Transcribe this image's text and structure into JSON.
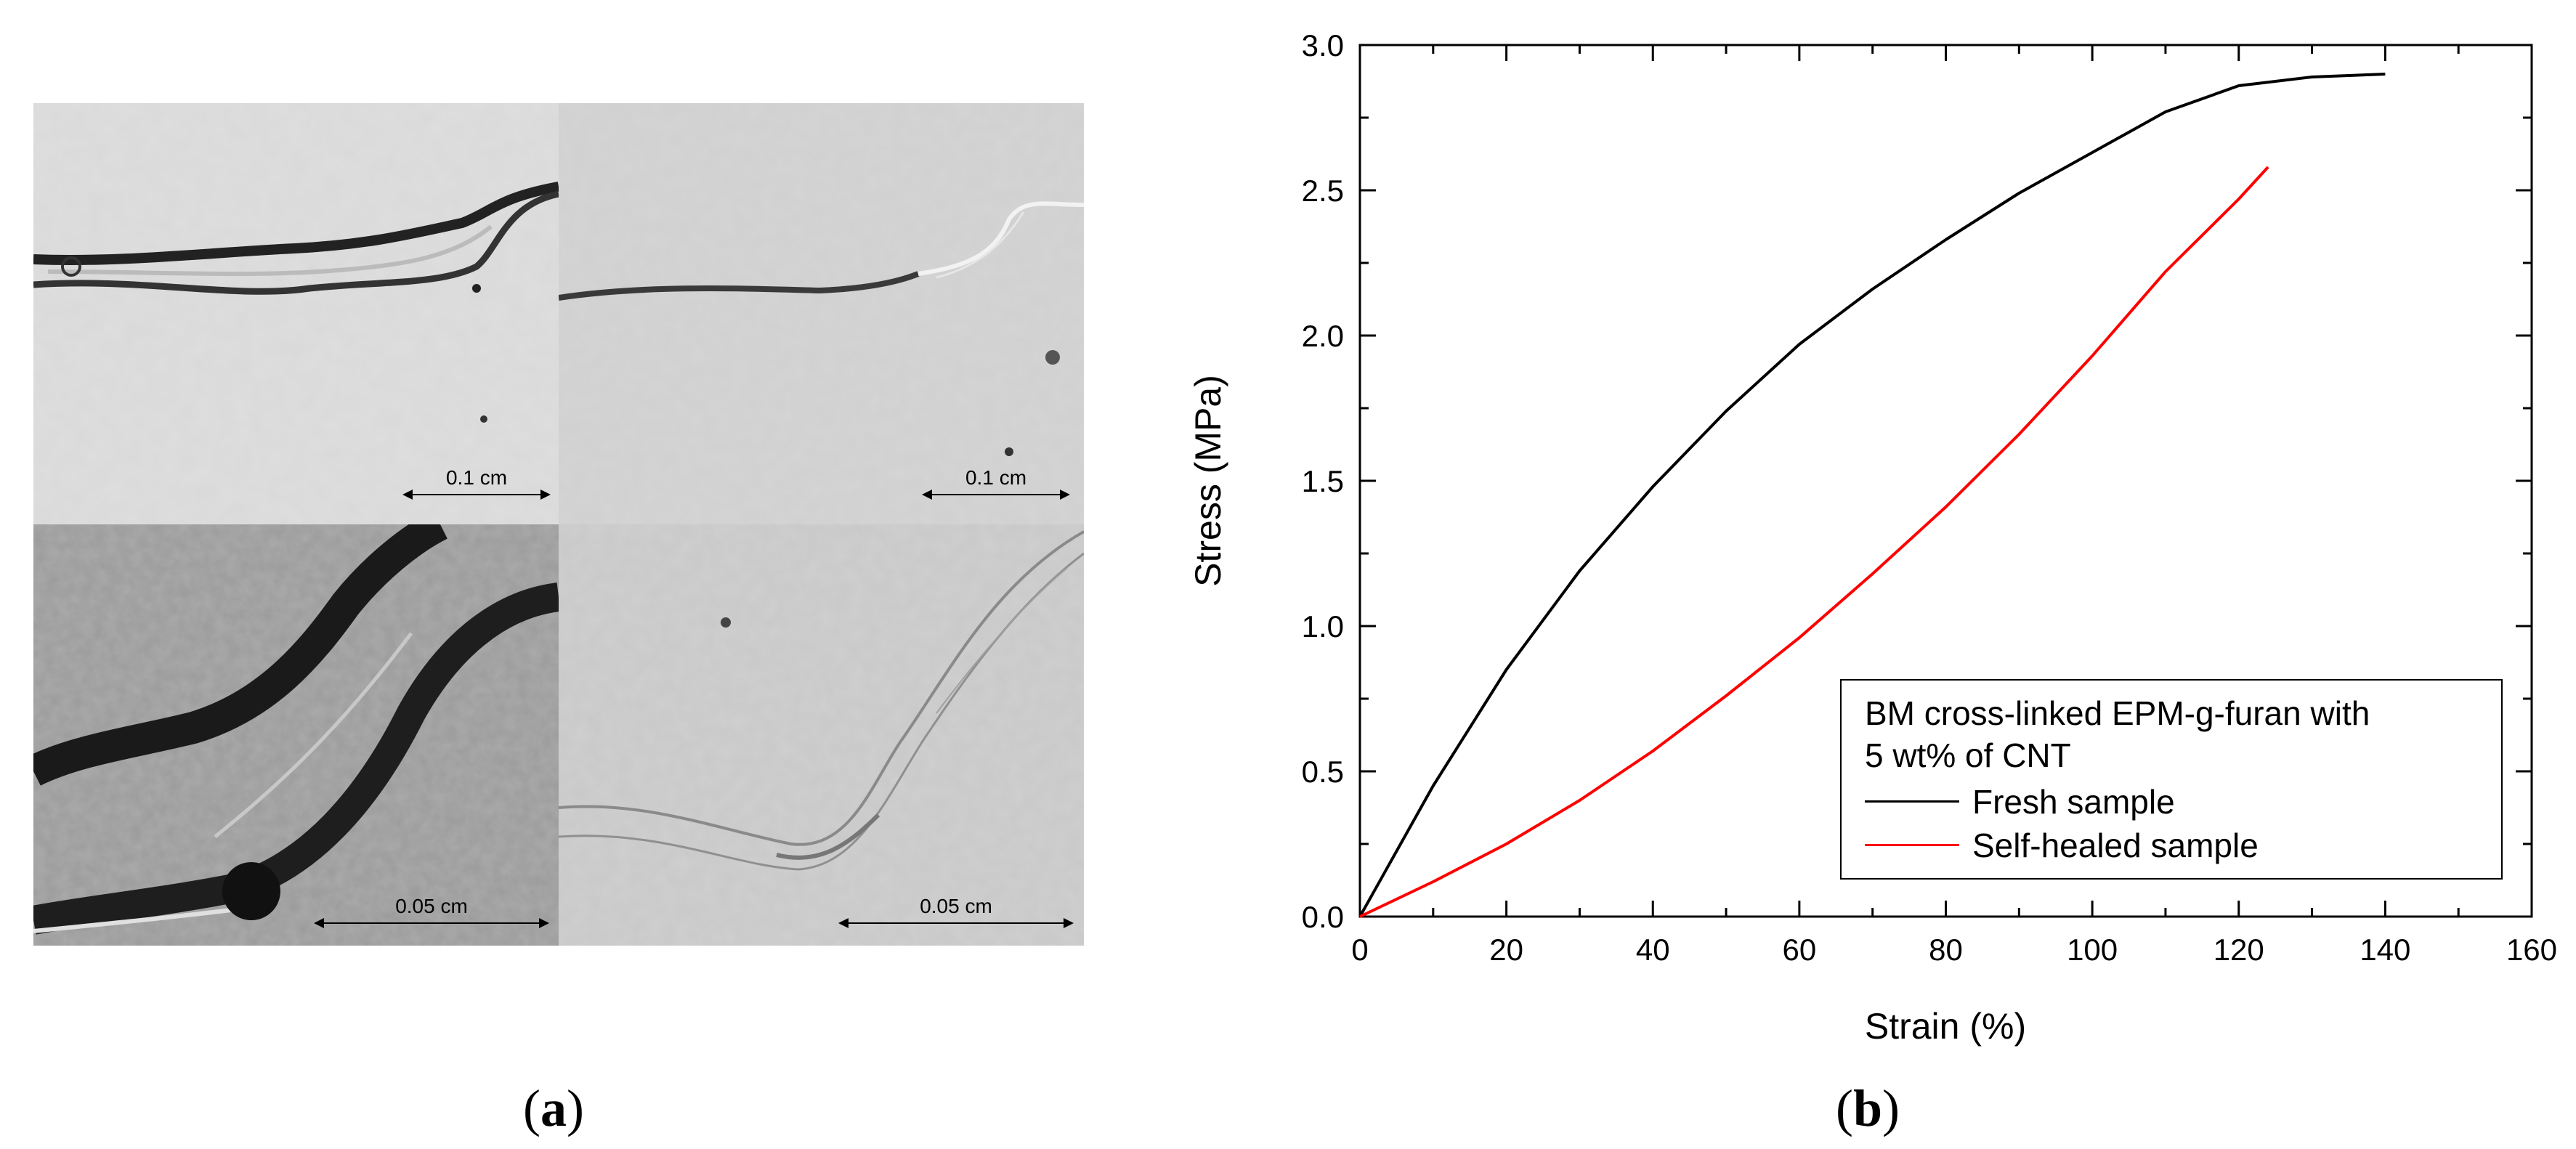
{
  "panels": {
    "a_label": "a",
    "b_label": "b"
  },
  "micrographs": {
    "scale_top_left": "0.1 cm",
    "scale_top_right": "0.1 cm",
    "scale_bottom_left": "0.05 cm",
    "scale_bottom_right": "0.05 cm"
  },
  "chart_data": {
    "type": "line",
    "title": "",
    "xlabel": "Strain (%)",
    "ylabel": "Stress (MPa)",
    "xlim": [
      0,
      160
    ],
    "ylim": [
      0,
      3.0
    ],
    "xticks": [
      0,
      20,
      40,
      60,
      80,
      100,
      120,
      140,
      160
    ],
    "yticks": [
      0.0,
      0.5,
      1.0,
      1.5,
      2.0,
      2.5,
      3.0
    ],
    "xtick_labels": [
      "0",
      "20",
      "40",
      "60",
      "80",
      "100",
      "120",
      "140",
      "160"
    ],
    "ytick_labels": [
      "0.0",
      "0.5",
      "1.0",
      "1.5",
      "2.0",
      "2.5",
      "3.0"
    ],
    "grid": false,
    "legend": {
      "placement": "bottom-right",
      "title": "BM cross-linked EPM-g-furan with",
      "title_line2": "5 wt% of CNT"
    },
    "series": [
      {
        "name": "Fresh sample",
        "color": "#000000",
        "x": [
          0,
          10,
          20,
          30,
          40,
          50,
          60,
          70,
          80,
          90,
          100,
          110,
          120,
          130,
          140
        ],
        "y": [
          0,
          0.45,
          0.85,
          1.19,
          1.48,
          1.74,
          1.97,
          2.16,
          2.33,
          2.49,
          2.63,
          2.77,
          2.86,
          2.89,
          2.9
        ]
      },
      {
        "name": "Self-healed sample",
        "color": "#ff0000",
        "x": [
          0,
          10,
          20,
          30,
          40,
          50,
          60,
          70,
          80,
          90,
          100,
          110,
          120,
          124
        ],
        "y": [
          0,
          0.12,
          0.25,
          0.4,
          0.57,
          0.76,
          0.96,
          1.18,
          1.41,
          1.66,
          1.93,
          2.22,
          2.47,
          2.58
        ]
      }
    ]
  }
}
